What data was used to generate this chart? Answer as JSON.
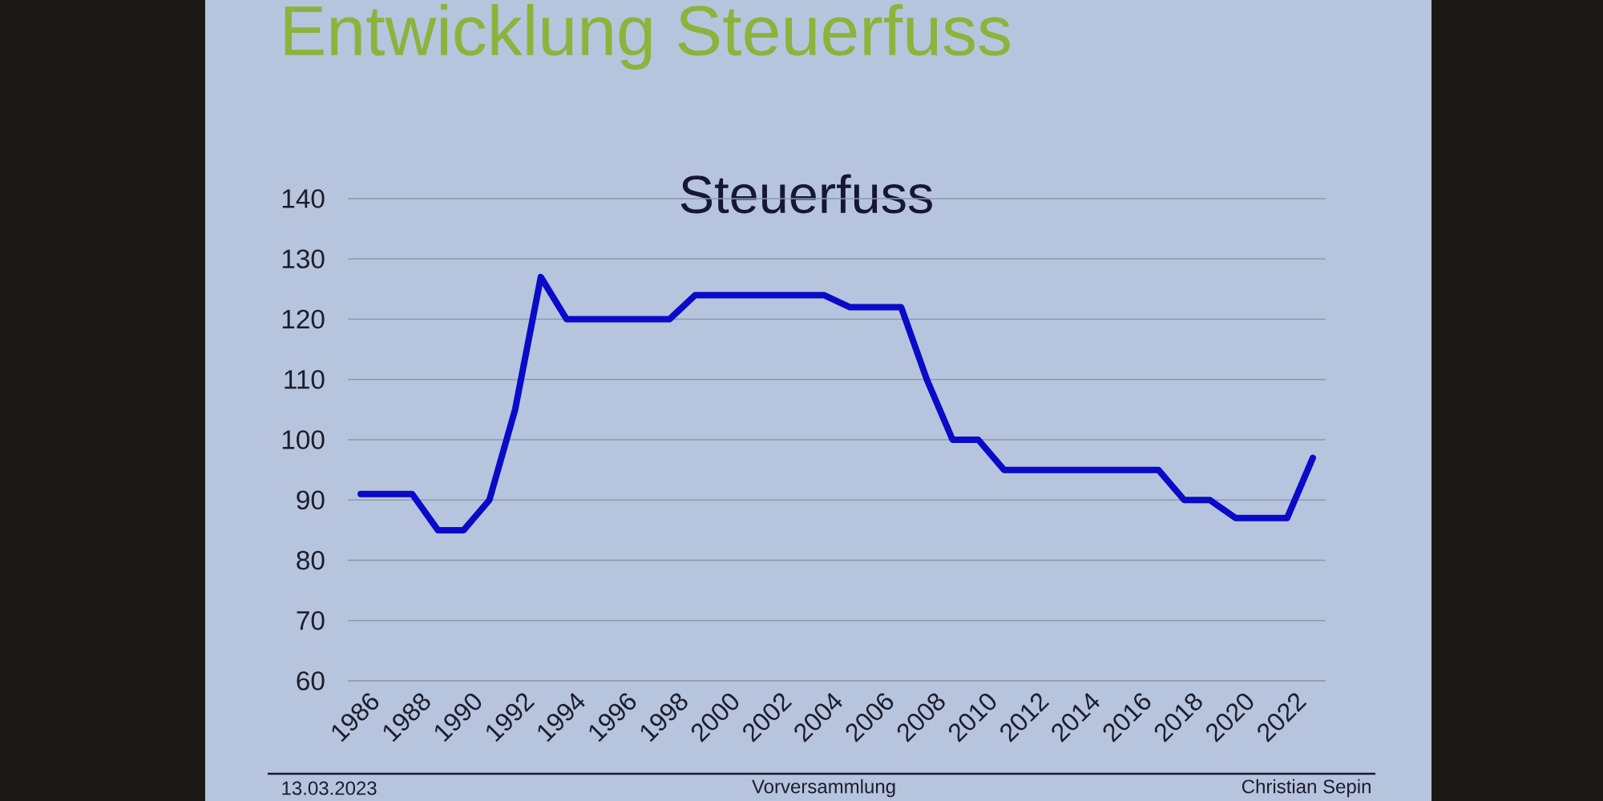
{
  "chart_data": {
    "type": "line",
    "title": "Entwicklung Steuerfuss",
    "subtitle": "Steuerfuss",
    "x": [
      1986,
      1987,
      1988,
      1989,
      1990,
      1991,
      1992,
      1993,
      1994,
      1995,
      1996,
      1997,
      1998,
      1999,
      2000,
      2001,
      2002,
      2003,
      2004,
      2005,
      2006,
      2007,
      2008,
      2009,
      2010,
      2011,
      2012,
      2013,
      2014,
      2015,
      2016,
      2017,
      2018,
      2019,
      2020,
      2021,
      2022,
      2023
    ],
    "series": [
      {
        "color": "#0a0ac8",
        "values": [
          91,
          91,
          91,
          85,
          85,
          90,
          105,
          127,
          120,
          120,
          120,
          120,
          120,
          124,
          124,
          124,
          124,
          124,
          124,
          122,
          122,
          122,
          110,
          100,
          100,
          95,
          95,
          95,
          95,
          95,
          95,
          95,
          90,
          90,
          87,
          87,
          87,
          97
        ]
      }
    ],
    "xlim": [
      1985.5,
      2023.5
    ],
    "xticks": [
      1986,
      1988,
      1990,
      1992,
      1994,
      1996,
      1998,
      2000,
      2002,
      2004,
      2006,
      2008,
      2010,
      2012,
      2014,
      2016,
      2018,
      2020,
      2022
    ],
    "ylim": [
      60,
      140
    ],
    "yticks": [
      60,
      70,
      80,
      90,
      100,
      110,
      120,
      130,
      140
    ],
    "grid": "y",
    "line_style": "solid",
    "annotations": [
      "13.03.2023",
      "Vorversammlung",
      "Christian Sepin"
    ]
  }
}
